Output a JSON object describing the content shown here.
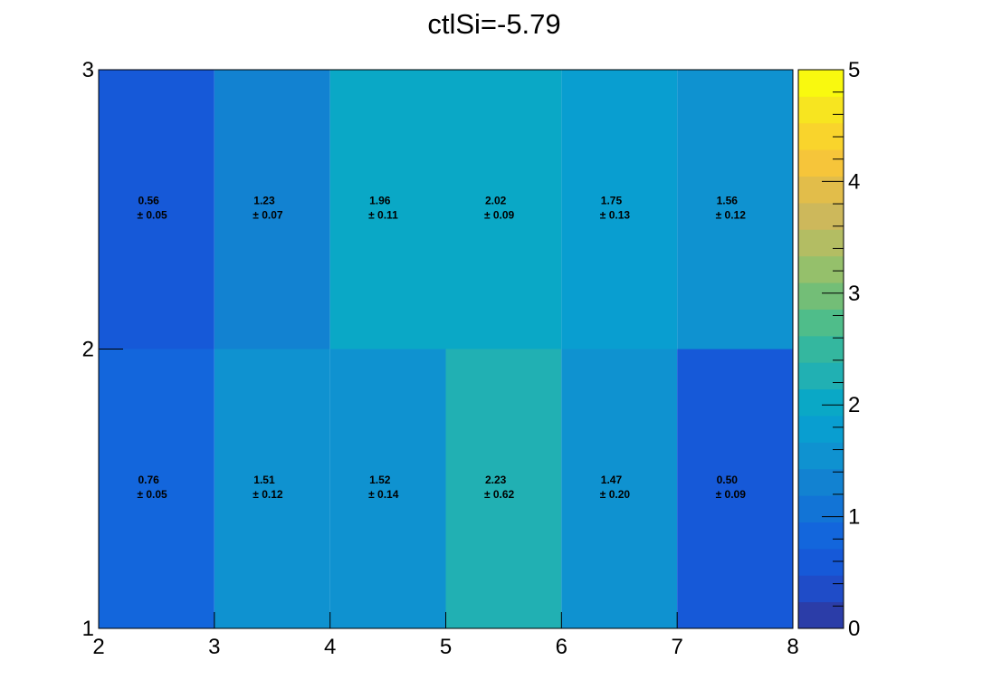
{
  "chart_data": {
    "type": "heatmap",
    "title": "ctlSi=-5.79",
    "x_edges": [
      2,
      3,
      4,
      5,
      6,
      7,
      8
    ],
    "y_edges": [
      1,
      2,
      3
    ],
    "x_ticks": [
      "2",
      "3",
      "4",
      "5",
      "6",
      "7",
      "8"
    ],
    "y_ticks": [
      "1",
      "2",
      "3"
    ],
    "xlim": [
      2,
      8
    ],
    "ylim": [
      1,
      3
    ],
    "zlim": [
      0,
      5
    ],
    "z_ticks": [
      "0",
      "1",
      "2",
      "3",
      "4",
      "5"
    ],
    "rows": [
      {
        "y_range": [
          1,
          2
        ],
        "values": [
          0.76,
          1.51,
          1.52,
          2.23,
          1.47,
          0.5
        ],
        "errors": [
          0.05,
          0.12,
          0.14,
          0.62,
          0.2,
          0.09
        ],
        "value_labels": [
          "0.76",
          "1.51",
          "1.52",
          "2.23",
          "1.47",
          "0.50"
        ],
        "error_labels": [
          "± 0.05",
          "± 0.12",
          "± 0.14",
          "± 0.62",
          "± 0.20",
          "± 0.09"
        ]
      },
      {
        "y_range": [
          2,
          3
        ],
        "values": [
          0.56,
          1.23,
          1.96,
          2.02,
          1.75,
          1.56
        ],
        "errors": [
          0.05,
          0.07,
          0.11,
          0.09,
          0.13,
          0.12
        ],
        "value_labels": [
          "0.56",
          "1.23",
          "1.96",
          "2.02",
          "1.75",
          "1.56"
        ],
        "error_labels": [
          "± 0.05",
          "± 0.07",
          "± 0.11",
          "± 0.09",
          "± 0.13",
          "± 0.12"
        ]
      }
    ],
    "palette": [
      "#2b3da8",
      "#1f4cc8",
      "#1659d8",
      "#1366dc",
      "#1274d6",
      "#1282d1",
      "#0f92d0",
      "#099ed0",
      "#0aa8c6",
      "#21b0b3",
      "#34b79f",
      "#4fbd8a",
      "#73be77",
      "#95c06b",
      "#b3bd63",
      "#cdb85b",
      "#e2bd4a",
      "#f6c53a",
      "#f9d42c",
      "#f7e520",
      "#f9f90f"
    ],
    "grid": false,
    "legend": "colorbar-right"
  }
}
